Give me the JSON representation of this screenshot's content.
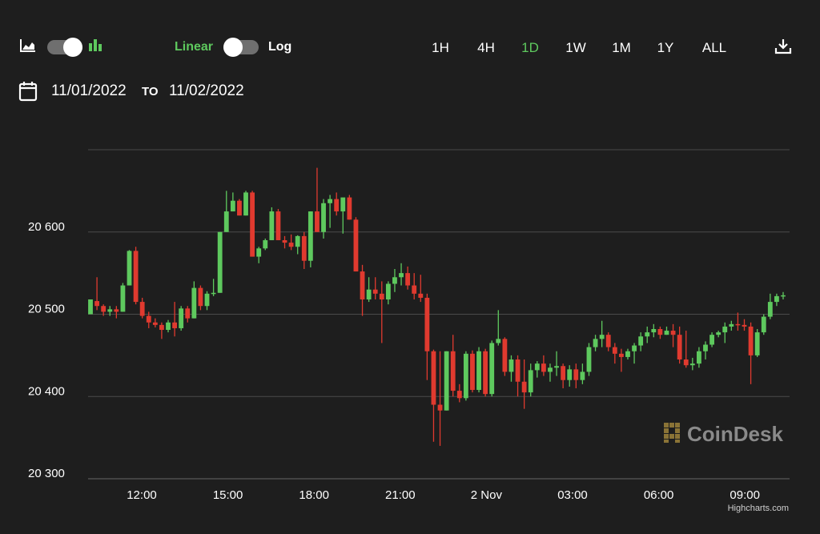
{
  "toolbar": {
    "scale_linear_label": "Linear",
    "scale_log_label": "Log",
    "ranges": [
      "1H",
      "4H",
      "1D",
      "1W",
      "1M",
      "1Y",
      "ALL"
    ],
    "active_range": "1D",
    "icons": {
      "area_chart": "area-chart-icon",
      "candle_chart": "candlestick-chart-icon",
      "calendar": "calendar-icon",
      "download": "download-icon"
    }
  },
  "date_range": {
    "from": "11/01/2022",
    "to_label": "TO",
    "to": "11/02/2022"
  },
  "colors": {
    "background": "#1e1e1e",
    "up": "#5ec95e",
    "down": "#e03a2f",
    "grid": "#4a4a4a"
  },
  "chart_data": {
    "type": "candlestick",
    "ylim": [
      20300,
      20700
    ],
    "y_ticks": [
      {
        "value": 20300,
        "label": "20 300"
      },
      {
        "value": 20400,
        "label": "20 400"
      },
      {
        "value": 20500,
        "label": "20 500"
      },
      {
        "value": 20600,
        "label": "20 600"
      }
    ],
    "x_ticks": [
      "12:00",
      "15:00",
      "18:00",
      "21:00",
      "2 Nov",
      "03:00",
      "06:00",
      "09:00"
    ],
    "watermark": "CoinDesk",
    "credit": "Highcharts.com",
    "candles": [
      [
        20500,
        20518,
        20500,
        20518
      ],
      [
        20516,
        20545,
        20505,
        20510
      ],
      [
        20510,
        20512,
        20498,
        20503
      ],
      [
        20503,
        20510,
        20498,
        20506
      ],
      [
        20506,
        20510,
        20495,
        20503
      ],
      [
        20503,
        20538,
        20503,
        20535
      ],
      [
        20535,
        20578,
        20535,
        20577
      ],
      [
        20577,
        20582,
        20512,
        20515
      ],
      [
        20515,
        20520,
        20495,
        20498
      ],
      [
        20498,
        20503,
        20483,
        20490
      ],
      [
        20490,
        20495,
        20484,
        20487
      ],
      [
        20487,
        20490,
        20470,
        20481
      ],
      [
        20481,
        20493,
        20478,
        20490
      ],
      [
        20490,
        20515,
        20473,
        20483
      ],
      [
        20483,
        20510,
        20480,
        20507
      ],
      [
        20507,
        20510,
        20490,
        20495
      ],
      [
        20495,
        20540,
        20495,
        20532
      ],
      [
        20532,
        20535,
        20505,
        20510
      ],
      [
        20510,
        20528,
        20505,
        20525
      ],
      [
        20525,
        20543,
        20522,
        20526
      ],
      [
        20526,
        20600,
        20526,
        20600
      ],
      [
        20600,
        20650,
        20600,
        20625
      ],
      [
        20625,
        20648,
        20625,
        20638
      ],
      [
        20638,
        20640,
        20620,
        20620
      ],
      [
        20620,
        20650,
        20620,
        20648
      ],
      [
        20648,
        20650,
        20570,
        20570
      ],
      [
        20570,
        20582,
        20562,
        20580
      ],
      [
        20580,
        20592,
        20578,
        20590
      ],
      [
        20590,
        20630,
        20590,
        20625
      ],
      [
        20625,
        20628,
        20590,
        20590
      ],
      [
        20590,
        20595,
        20580,
        20587
      ],
      [
        20587,
        20597,
        20578,
        20582
      ],
      [
        20582,
        20596,
        20573,
        20595
      ],
      [
        20595,
        20600,
        20555,
        20565
      ],
      [
        20565,
        20625,
        20557,
        20625
      ],
      [
        20625,
        20678,
        20600,
        20600
      ],
      [
        20600,
        20640,
        20592,
        20635
      ],
      [
        20635,
        20645,
        20605,
        20640
      ],
      [
        20640,
        20648,
        20620,
        20625
      ],
      [
        20625,
        20640,
        20598,
        20642
      ],
      [
        20642,
        20645,
        20615,
        20615
      ],
      [
        20615,
        20618,
        20552,
        20552
      ],
      [
        20552,
        20560,
        20498,
        20518
      ],
      [
        20518,
        20545,
        20515,
        20530
      ],
      [
        20530,
        20545,
        20518,
        20525
      ],
      [
        20525,
        20540,
        20465,
        20518
      ],
      [
        20518,
        20540,
        20512,
        20537
      ],
      [
        20537,
        20555,
        20527,
        20545
      ],
      [
        20545,
        20562,
        20535,
        20550
      ],
      [
        20550,
        20558,
        20530,
        20535
      ],
      [
        20535,
        20550,
        20518,
        20525
      ],
      [
        20525,
        20548,
        20515,
        20520
      ],
      [
        20520,
        20525,
        20420,
        20455
      ],
      [
        20455,
        20457,
        20345,
        20390
      ],
      [
        20390,
        20455,
        20340,
        20383
      ],
      [
        20383,
        20455,
        20383,
        20455
      ],
      [
        20455,
        20475,
        20400,
        20407
      ],
      [
        20407,
        20415,
        20393,
        20398
      ],
      [
        20398,
        20455,
        20395,
        20452
      ],
      [
        20452,
        20456,
        20405,
        20408
      ],
      [
        20408,
        20460,
        20405,
        20455
      ],
      [
        20455,
        20458,
        20400,
        20403
      ],
      [
        20403,
        20468,
        20400,
        20465
      ],
      [
        20465,
        20505,
        20462,
        20470
      ],
      [
        20470,
        20472,
        20425,
        20430
      ],
      [
        20430,
        20450,
        20418,
        20445
      ],
      [
        20445,
        20450,
        20400,
        20418
      ],
      [
        20418,
        20445,
        20385,
        20405
      ],
      [
        20405,
        20440,
        20400,
        20432
      ],
      [
        20432,
        20443,
        20423,
        20440
      ],
      [
        20440,
        20450,
        20425,
        20430
      ],
      [
        20430,
        20440,
        20418,
        20435
      ],
      [
        20435,
        20455,
        20425,
        20437
      ],
      [
        20437,
        20440,
        20410,
        20420
      ],
      [
        20420,
        20438,
        20412,
        20433
      ],
      [
        20433,
        20440,
        20410,
        20420
      ],
      [
        20420,
        20440,
        20415,
        20430
      ],
      [
        20430,
        20465,
        20425,
        20460
      ],
      [
        20460,
        20475,
        20455,
        20470
      ],
      [
        20470,
        20492,
        20460,
        20475
      ],
      [
        20475,
        20478,
        20455,
        20460
      ],
      [
        20460,
        20465,
        20440,
        20452
      ],
      [
        20452,
        20458,
        20430,
        20448
      ],
      [
        20448,
        20458,
        20445,
        20455
      ],
      [
        20455,
        20465,
        20440,
        20462
      ],
      [
        20462,
        20478,
        20455,
        20473
      ],
      [
        20473,
        20485,
        20465,
        20478
      ],
      [
        20478,
        20488,
        20472,
        20482
      ],
      [
        20482,
        20485,
        20470,
        20475
      ],
      [
        20475,
        20485,
        20475,
        20480
      ],
      [
        20480,
        20488,
        20460,
        20475
      ],
      [
        20475,
        20485,
        20440,
        20445
      ],
      [
        20445,
        20480,
        20435,
        20438
      ],
      [
        20438,
        20447,
        20432,
        20440
      ],
      [
        20440,
        20460,
        20435,
        20455
      ],
      [
        20455,
        20467,
        20445,
        20463
      ],
      [
        20463,
        20478,
        20460,
        20475
      ],
      [
        20475,
        20480,
        20472,
        20478
      ],
      [
        20478,
        20490,
        20465,
        20485
      ],
      [
        20485,
        20492,
        20480,
        20488
      ],
      [
        20488,
        20502,
        20480,
        20487
      ],
      [
        20487,
        20494,
        20480,
        20485
      ],
      [
        20485,
        20490,
        20415,
        20450
      ],
      [
        20450,
        20482,
        20448,
        20478
      ],
      [
        20478,
        20500,
        20475,
        20497
      ],
      [
        20497,
        20525,
        20494,
        20515
      ],
      [
        20515,
        20525,
        20510,
        20522
      ],
      [
        20522,
        20527,
        20518,
        20523
      ]
    ]
  }
}
